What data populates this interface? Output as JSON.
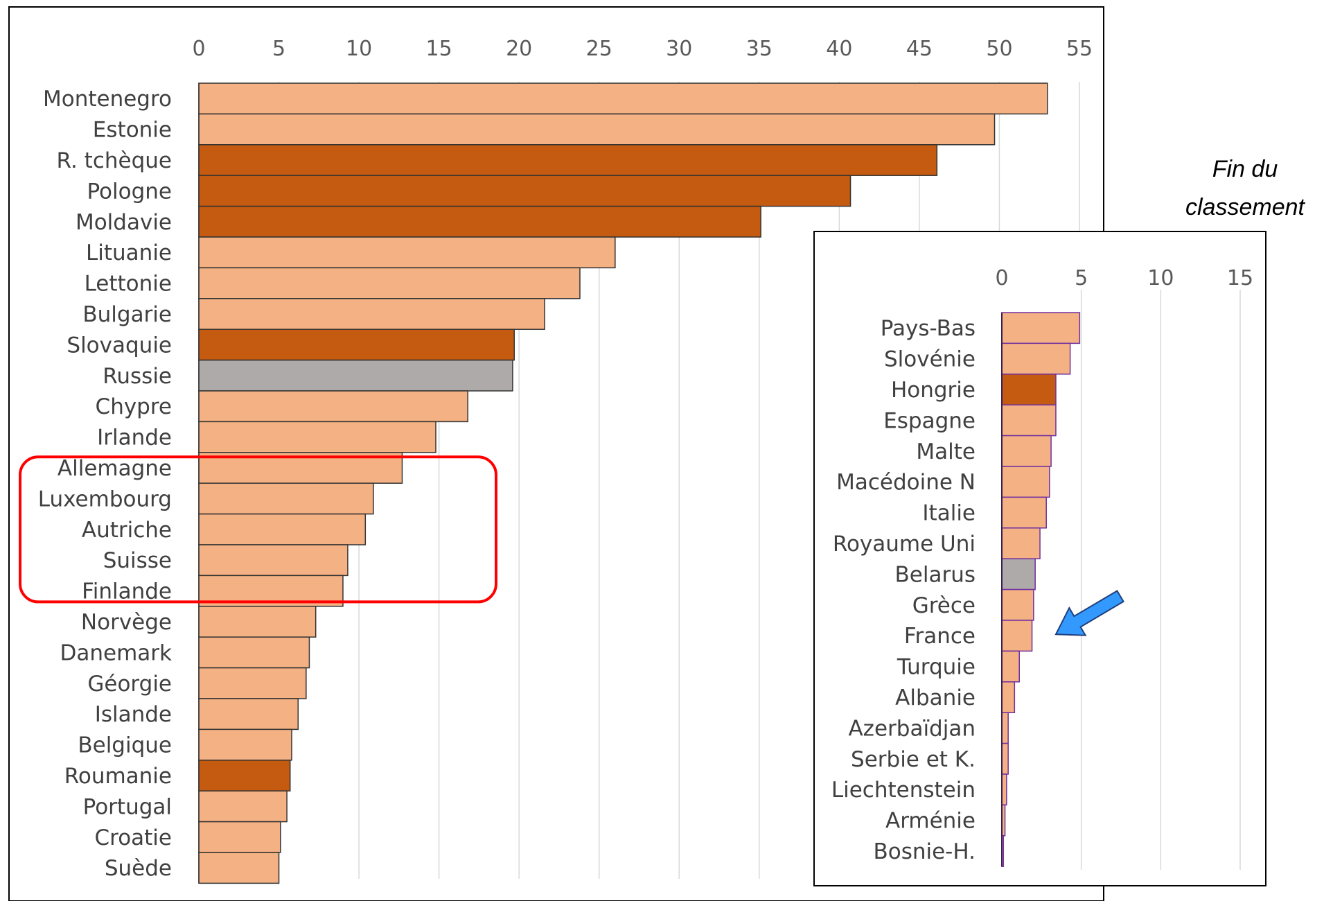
{
  "chart_data": [
    {
      "type": "bar",
      "orientation": "horizontal",
      "xlim": [
        0,
        55
      ],
      "ticks": [
        "0",
        "5",
        "10",
        "15",
        "20",
        "25",
        "30",
        "35",
        "40",
        "45",
        "50",
        "55"
      ],
      "grid": true,
      "categories": [
        "Montenegro",
        "Estonie",
        "R. tchèque",
        "Pologne",
        "Moldavie",
        "Lituanie",
        "Lettonie",
        "Bulgarie",
        "Slovaquie",
        "Russie",
        "Chypre",
        "Irlande",
        "Allemagne",
        "Luxembourg",
        "Autriche",
        "Suisse",
        "Finlande",
        "Norvège",
        "Danemark",
        "Géorgie",
        "Islande",
        "Belgique",
        "Roumanie",
        "Portugal",
        "Croatie",
        "Suède"
      ],
      "values": [
        53,
        49.7,
        46.1,
        40.7,
        35.1,
        26,
        23.8,
        21.6,
        19.7,
        19.6,
        16.8,
        14.8,
        12.7,
        10.9,
        10.4,
        9.3,
        9,
        7.3,
        6.9,
        6.7,
        6.2,
        5.8,
        5.7,
        5.5,
        5.1,
        5
      ],
      "highlight": [
        "R. tchèque",
        "Pologne",
        "Moldavie",
        "Slovaquie",
        "Roumanie"
      ],
      "neutral": [
        "Russie"
      ],
      "boxed": [
        "Luxembourg",
        "Autriche",
        "Suisse"
      ]
    },
    {
      "type": "bar",
      "orientation": "horizontal",
      "title": "Fin du classement",
      "xlim": [
        0,
        15
      ],
      "ticks": [
        "0",
        "5",
        "10",
        "15"
      ],
      "grid": true,
      "categories": [
        "Pays-Bas",
        "Slovénie",
        "Hongrie",
        "Espagne",
        "Malte",
        "Macédoine N",
        "Italie",
        "Royaume Uni",
        "Belarus",
        "Grèce",
        "France",
        "Turquie",
        "Albanie",
        "Azerbaïdjan",
        "Serbie et K.",
        "Liechtenstein",
        "Arménie",
        "Bosnie-H."
      ],
      "values": [
        4.9,
        4.3,
        3.4,
        3.4,
        3.1,
        3.0,
        2.8,
        2.4,
        2.1,
        2.0,
        1.9,
        1.1,
        0.8,
        0.4,
        0.4,
        0.3,
        0.2,
        0.1
      ],
      "highlight": [
        "Hongrie"
      ],
      "neutral": [
        "Belarus"
      ],
      "arrow_to": "France"
    }
  ],
  "colors": {
    "light": "#F4B183",
    "dark": "#C55A11",
    "grey": "#AEAAAA",
    "box": "#FF0000",
    "arrow": "#3399FF",
    "inset_bar_border": "#7030A0"
  }
}
